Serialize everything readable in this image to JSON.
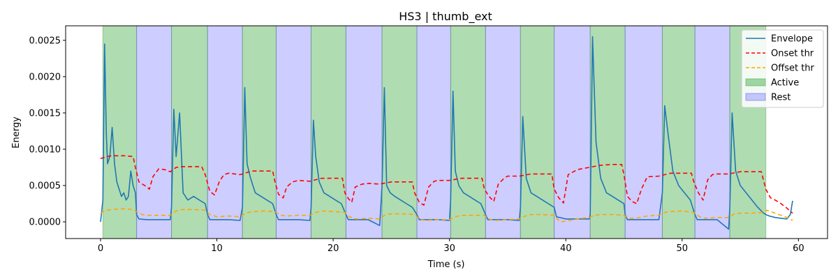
{
  "chart_data": {
    "type": "line",
    "title": "HS3 | thumb_ext",
    "xlabel": "Time (s)",
    "ylabel": "Energy",
    "xlim": [
      -3,
      62.5
    ],
    "ylim": [
      -0.00023,
      0.0027
    ],
    "x_ticks": [
      0,
      10,
      20,
      30,
      40,
      50,
      60
    ],
    "x_tick_labels": [
      "0",
      "10",
      "20",
      "30",
      "40",
      "50",
      "60"
    ],
    "y_ticks": [
      0,
      0.0005,
      0.001,
      0.0015,
      0.002,
      0.0025
    ],
    "y_tick_labels": [
      "0.0000",
      "0.0005",
      "0.0010",
      "0.0015",
      "0.0020",
      "0.0025"
    ],
    "grid": false,
    "legend_position": "top-right",
    "legend": [
      {
        "label": "Envelope",
        "style": "line",
        "color": "#1f77b4"
      },
      {
        "label": "Onset thr",
        "style": "dashed",
        "color": "#ff0000"
      },
      {
        "label": "Offset thr",
        "style": "dashed",
        "color": "#ffa500"
      },
      {
        "label": "Active",
        "style": "patch",
        "color": "#4caf50"
      },
      {
        "label": "Rest",
        "style": "patch",
        "color": "#6666ff"
      }
    ],
    "regions": [
      {
        "type": "Active",
        "start": 0.2,
        "end": 3.1
      },
      {
        "type": "Rest",
        "start": 3.1,
        "end": 6.1
      },
      {
        "type": "Active",
        "start": 6.1,
        "end": 9.2
      },
      {
        "type": "Rest",
        "start": 9.2,
        "end": 12.2
      },
      {
        "type": "Active",
        "start": 12.2,
        "end": 15.1
      },
      {
        "type": "Rest",
        "start": 15.1,
        "end": 18.1
      },
      {
        "type": "Active",
        "start": 18.1,
        "end": 21.1
      },
      {
        "type": "Rest",
        "start": 21.1,
        "end": 24.2
      },
      {
        "type": "Active",
        "start": 24.2,
        "end": 27.2
      },
      {
        "type": "Rest",
        "start": 27.2,
        "end": 30.1
      },
      {
        "type": "Active",
        "start": 30.1,
        "end": 33.1
      },
      {
        "type": "Rest",
        "start": 33.1,
        "end": 36.1
      },
      {
        "type": "Active",
        "start": 36.1,
        "end": 39.0
      },
      {
        "type": "Rest",
        "start": 39.0,
        "end": 42.1
      },
      {
        "type": "Active",
        "start": 42.1,
        "end": 45.1
      },
      {
        "type": "Rest",
        "start": 45.1,
        "end": 48.3
      },
      {
        "type": "Active",
        "start": 48.3,
        "end": 51.1
      },
      {
        "type": "Rest",
        "start": 51.1,
        "end": 54.1
      },
      {
        "type": "Active",
        "start": 54.1,
        "end": 57.2
      }
    ],
    "series": [
      {
        "name": "Envelope",
        "color": "#1f77b4",
        "dash": "none",
        "x": [
          0.0,
          0.2,
          0.35,
          0.5,
          0.6,
          0.8,
          1.0,
          1.2,
          1.4,
          1.6,
          1.8,
          2.0,
          2.2,
          2.4,
          2.6,
          2.8,
          3.0,
          3.1,
          3.3,
          4.0,
          5.0,
          6.0,
          6.1,
          6.3,
          6.5,
          6.8,
          7.1,
          7.5,
          8.0,
          8.5,
          9.0,
          9.2,
          9.4,
          10.0,
          11.0,
          12.0,
          12.2,
          12.4,
          12.6,
          12.9,
          13.3,
          13.8,
          14.3,
          14.8,
          15.1,
          15.3,
          16.0,
          17.0,
          18.0,
          18.1,
          18.3,
          18.5,
          18.8,
          19.2,
          19.7,
          20.2,
          20.7,
          21.1,
          21.3,
          22.0,
          23.0,
          24.0,
          24.2,
          24.4,
          24.6,
          24.9,
          25.3,
          25.8,
          26.3,
          26.8,
          27.2,
          27.4,
          28.0,
          29.0,
          30.0,
          30.1,
          30.3,
          30.5,
          30.8,
          31.2,
          31.7,
          32.2,
          32.7,
          33.1,
          33.3,
          34.0,
          35.0,
          36.0,
          36.1,
          36.3,
          36.6,
          37.0,
          37.5,
          38.0,
          38.5,
          39.0,
          39.2,
          40.0,
          41.0,
          42.0,
          42.1,
          42.3,
          42.6,
          43.0,
          43.5,
          44.0,
          44.5,
          45.0,
          45.1,
          45.3,
          46.0,
          47.0,
          48.0,
          48.3,
          48.5,
          48.8,
          49.2,
          49.7,
          50.2,
          50.7,
          51.1,
          51.3,
          52.0,
          53.0,
          54.0,
          54.1,
          54.3,
          54.6,
          55.0,
          55.5,
          56.0,
          56.5,
          57.0,
          57.2,
          57.5,
          58.0,
          58.5,
          59.0,
          59.3,
          59.5
        ],
        "y": [
          0.0,
          0.0003,
          0.00245,
          0.0012,
          0.0008,
          0.0009,
          0.0013,
          0.0008,
          0.00055,
          0.00045,
          0.00035,
          0.0004,
          0.0003,
          0.00035,
          0.0007,
          0.0005,
          0.0004,
          0.0001,
          4e-05,
          3e-05,
          3e-05,
          3e-05,
          0.0002,
          0.00155,
          0.0009,
          0.0015,
          0.0004,
          0.0003,
          0.00035,
          0.0003,
          0.00025,
          0.0001,
          3e-05,
          3e-05,
          3e-05,
          2e-05,
          0.0002,
          0.00185,
          0.0008,
          0.0006,
          0.0004,
          0.00035,
          0.0003,
          0.00025,
          0.0001,
          3e-05,
          3e-05,
          3e-05,
          2e-05,
          0.0002,
          0.0014,
          0.0009,
          0.00055,
          0.0004,
          0.00035,
          0.0003,
          0.00025,
          0.0001,
          3e-05,
          3e-05,
          3e-05,
          -5e-05,
          0.0005,
          0.00185,
          0.0005,
          0.0004,
          0.00035,
          0.0003,
          0.00025,
          0.0002,
          0.0001,
          3e-05,
          3e-05,
          3e-05,
          2e-05,
          0.0003,
          0.0018,
          0.0007,
          0.0005,
          0.0004,
          0.00035,
          0.0003,
          0.00025,
          0.0001,
          3e-05,
          3e-05,
          3e-05,
          2e-05,
          0.0002,
          0.00145,
          0.0006,
          0.0004,
          0.00035,
          0.0003,
          0.00025,
          0.0002,
          7e-05,
          4e-05,
          4e-05,
          4e-05,
          0.0001,
          0.00255,
          0.0011,
          0.0006,
          0.0004,
          0.00035,
          0.0003,
          0.00025,
          0.0001,
          3e-05,
          3e-05,
          3e-05,
          3e-05,
          0.0004,
          0.0016,
          0.0012,
          0.0007,
          0.0005,
          0.0004,
          0.0003,
          0.0001,
          3e-05,
          3e-05,
          3e-05,
          -0.0001,
          0.0002,
          0.0015,
          0.0007,
          0.0005,
          0.0004,
          0.0003,
          0.0002,
          0.00012,
          0.0001,
          8e-05,
          6e-05,
          5e-05,
          4e-05,
          0.0001,
          0.00029
        ]
      },
      {
        "name": "Onset thr",
        "color": "#ff0000",
        "dash": "6,4",
        "x": [
          0.0,
          0.5,
          1.0,
          2.0,
          2.8,
          3.0,
          3.3,
          3.8,
          4.2,
          4.5,
          5.0,
          5.5,
          6.0,
          6.5,
          7.0,
          8.0,
          8.7,
          9.0,
          9.4,
          9.8,
          10.2,
          10.6,
          11.0,
          12.0,
          13.0,
          14.0,
          14.8,
          15.0,
          15.3,
          15.7,
          16.0,
          16.5,
          17.0,
          18.0,
          19.0,
          20.0,
          20.8,
          21.0,
          21.3,
          21.6,
          21.9,
          22.5,
          23.0,
          24.0,
          25.0,
          26.0,
          26.8,
          27.0,
          27.4,
          27.8,
          28.2,
          28.7,
          29.0,
          30.0,
          31.0,
          32.0,
          32.8,
          33.0,
          33.4,
          33.8,
          34.2,
          34.7,
          35.0,
          36.0,
          37.0,
          38.0,
          38.8,
          39.0,
          39.4,
          39.8,
          40.2,
          41.0,
          42.0,
          43.0,
          44.0,
          44.8,
          45.0,
          45.3,
          45.7,
          46.1,
          46.5,
          47.0,
          48.0,
          49.0,
          50.0,
          50.8,
          51.0,
          51.4,
          51.8,
          52.2,
          52.6,
          53.0,
          54.0,
          55.0,
          56.0,
          56.8,
          57.2,
          57.6,
          58.0,
          58.5,
          59.0,
          59.5
        ],
        "y": [
          0.00087,
          0.0009,
          0.00091,
          0.00091,
          0.0009,
          0.00075,
          0.00055,
          0.0005,
          0.00045,
          0.00062,
          0.00073,
          0.00072,
          0.00069,
          0.00075,
          0.00076,
          0.00076,
          0.00076,
          0.00065,
          0.00042,
          0.00037,
          0.00055,
          0.00065,
          0.00067,
          0.00065,
          0.0007,
          0.0007,
          0.0007,
          0.00055,
          0.00038,
          0.00033,
          0.00048,
          0.00055,
          0.00057,
          0.00056,
          0.0006,
          0.0006,
          0.0006,
          0.0004,
          0.00032,
          0.00027,
          0.00048,
          0.00052,
          0.00053,
          0.00052,
          0.00055,
          0.00055,
          0.00055,
          0.0004,
          0.00027,
          0.00023,
          0.00048,
          0.00056,
          0.00057,
          0.00057,
          0.0006,
          0.0006,
          0.0006,
          0.00045,
          0.00035,
          0.00028,
          0.00052,
          0.0006,
          0.00063,
          0.00063,
          0.00066,
          0.00066,
          0.00066,
          0.00045,
          0.00033,
          0.00026,
          0.00065,
          0.00072,
          0.00075,
          0.00078,
          0.00079,
          0.00079,
          0.00065,
          0.00035,
          0.00028,
          0.00025,
          0.00045,
          0.00062,
          0.00063,
          0.00067,
          0.00067,
          0.00067,
          0.00055,
          0.0004,
          0.0003,
          0.00058,
          0.00065,
          0.00066,
          0.00066,
          0.00069,
          0.00069,
          0.00069,
          0.00045,
          0.00033,
          0.0003,
          0.00025,
          0.00019,
          0.00012
        ]
      },
      {
        "name": "Offset thr",
        "color": "#ffa500",
        "dash": "6,4",
        "x": [
          0.0,
          0.5,
          1.0,
          2.0,
          2.8,
          3.2,
          3.6,
          4.0,
          5.0,
          6.0,
          6.5,
          7.0,
          8.0,
          9.0,
          9.4,
          10.0,
          11.0,
          12.0,
          12.5,
          13.0,
          14.0,
          15.0,
          15.5,
          16.0,
          17.0,
          18.0,
          18.5,
          19.0,
          20.0,
          21.0,
          21.4,
          22.0,
          23.0,
          24.0,
          24.5,
          25.0,
          26.0,
          27.0,
          27.5,
          28.0,
          29.0,
          30.0,
          30.5,
          31.0,
          32.0,
          33.0,
          33.5,
          34.0,
          35.0,
          36.0,
          36.5,
          37.0,
          38.0,
          39.0,
          39.5,
          40.0,
          41.0,
          42.0,
          42.5,
          43.0,
          44.0,
          45.0,
          45.5,
          46.0,
          47.0,
          48.0,
          48.5,
          49.0,
          50.0,
          51.0,
          51.5,
          52.0,
          53.0,
          54.0,
          54.5,
          55.0,
          56.0,
          57.0,
          57.3,
          58.0,
          59.0,
          59.5
        ],
        "y": [
          0.00012,
          0.00016,
          0.00017,
          0.00018,
          0.00017,
          0.00013,
          0.0001,
          9e-05,
          9e-05,
          9e-05,
          0.00015,
          0.00017,
          0.00017,
          0.00016,
          0.0001,
          7e-05,
          8e-05,
          7e-05,
          0.00012,
          0.00014,
          0.00015,
          0.00014,
          9e-05,
          8e-05,
          9e-05,
          9e-05,
          0.00013,
          0.00015,
          0.00014,
          0.00013,
          7e-05,
          4e-05,
          5e-05,
          4e-05,
          0.0001,
          0.00011,
          0.00011,
          0.0001,
          3e-05,
          2e-05,
          3e-05,
          3e-05,
          7e-05,
          9e-05,
          9e-05,
          9e-05,
          3e-05,
          2e-05,
          3e-05,
          4e-05,
          8e-05,
          0.0001,
          0.0001,
          9e-05,
          0.0,
          1e-05,
          4e-05,
          6e-05,
          9e-05,
          0.0001,
          0.0001,
          9e-05,
          5e-05,
          5e-05,
          8e-05,
          9e-05,
          0.00013,
          0.00014,
          0.00015,
          0.00013,
          7e-05,
          5e-05,
          6e-05,
          6e-05,
          0.00011,
          0.00012,
          0.00012,
          0.00013,
          0.00016,
          0.00012,
          6e-05,
          2e-05
        ]
      }
    ]
  }
}
